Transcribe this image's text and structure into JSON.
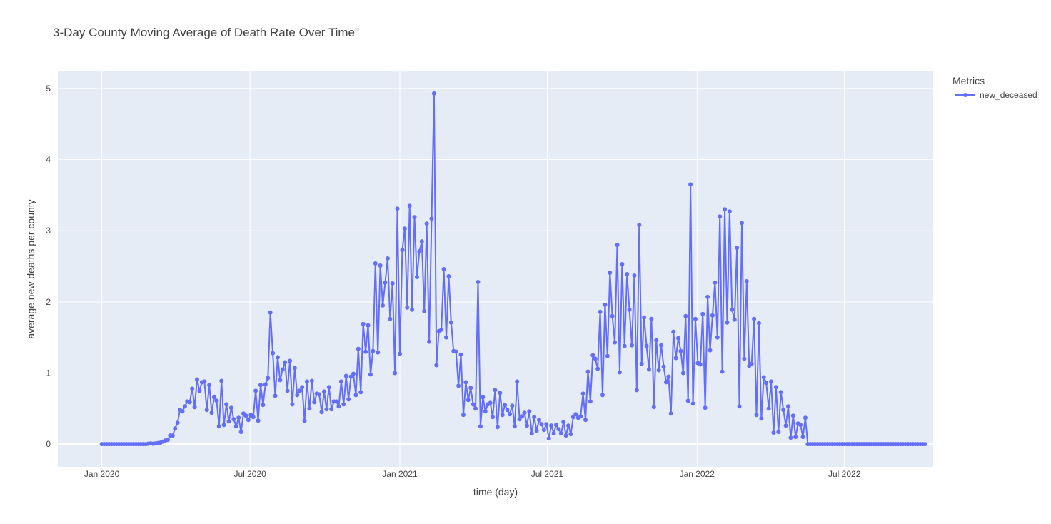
{
  "chart_data": {
    "type": "line",
    "title": "3-Day County Moving Average of Death Rate Over Time\"",
    "xlabel": "time (day)",
    "ylabel": "average new deaths per county",
    "x_ticks": [
      {
        "label": "Jan 2020",
        "date": "2020-01-01"
      },
      {
        "label": "Jul 2020",
        "date": "2020-07-01"
      },
      {
        "label": "Jan 2021",
        "date": "2021-01-01"
      },
      {
        "label": "Jul 2021",
        "date": "2021-07-01"
      },
      {
        "label": "Jan 2022",
        "date": "2022-01-01"
      },
      {
        "label": "Jul 2022",
        "date": "2022-07-01"
      }
    ],
    "y_ticks": [
      0,
      1,
      2,
      3,
      4,
      5
    ],
    "xlim": [
      "2019-11-08",
      "2022-10-18"
    ],
    "ylim": [
      -0.32,
      5.24
    ],
    "grid": true,
    "legend": {
      "title": "Metrics",
      "position": "right",
      "entries": [
        "new_deceased"
      ]
    },
    "series": [
      {
        "name": "new_deceased",
        "color": "#636efa",
        "start_date": "2020-01-01",
        "interval_days": 3,
        "values": [
          0,
          0,
          0,
          0,
          0,
          0,
          0,
          0,
          0,
          0,
          0,
          0,
          0,
          0,
          0,
          0,
          0,
          0,
          0,
          0.005,
          0.01,
          0.005,
          0.01,
          0.015,
          0.02,
          0.035,
          0.05,
          0.06,
          0.12,
          0.12,
          0.22,
          0.3,
          0.48,
          0.46,
          0.53,
          0.6,
          0.59,
          0.78,
          0.52,
          0.91,
          0.75,
          0.87,
          0.88,
          0.48,
          0.83,
          0.44,
          0.66,
          0.61,
          0.25,
          0.89,
          0.27,
          0.56,
          0.32,
          0.51,
          0.35,
          0.25,
          0.37,
          0.17,
          0.43,
          0.4,
          0.34,
          0.41,
          0.38,
          0.75,
          0.33,
          0.83,
          0.55,
          0.84,
          0.93,
          1.85,
          1.28,
          0.68,
          1.22,
          0.9,
          1.05,
          1.15,
          0.75,
          1.17,
          0.56,
          1.07,
          0.69,
          0.75,
          0.8,
          0.33,
          0.88,
          0.5,
          0.89,
          0.59,
          0.71,
          0.7,
          0.45,
          0.74,
          0.49,
          0.8,
          0.49,
          0.6,
          0.6,
          0.53,
          0.88,
          0.56,
          0.96,
          0.63,
          0.95,
          0.99,
          0.69,
          1.34,
          0.73,
          1.69,
          1.3,
          1.67,
          0.98,
          1.31,
          2.54,
          1.29,
          2.51,
          1.95,
          2.27,
          2.61,
          1.76,
          2.26,
          1.0,
          3.31,
          1.27,
          2.73,
          3.03,
          1.92,
          3.35,
          1.89,
          3.19,
          2.35,
          2.71,
          2.85,
          1.87,
          3.1,
          1.44,
          3.17,
          4.93,
          1.11,
          1.59,
          1.61,
          2.46,
          1.5,
          2.36,
          1.71,
          1.31,
          1.3,
          0.82,
          1.26,
          0.41,
          0.87,
          0.62,
          0.79,
          0.56,
          0.5,
          2.28,
          0.25,
          0.66,
          0.46,
          0.56,
          0.58,
          0.38,
          0.76,
          0.24,
          0.72,
          0.41,
          0.55,
          0.48,
          0.42,
          0.54,
          0.25,
          0.88,
          0.35,
          0.39,
          0.44,
          0.26,
          0.46,
          0.15,
          0.38,
          0.19,
          0.34,
          0.28,
          0.2,
          0.28,
          0.08,
          0.26,
          0.15,
          0.27,
          0.21,
          0.15,
          0.31,
          0.12,
          0.26,
          0.14,
          0.38,
          0.42,
          0.37,
          0.39,
          0.71,
          0.34,
          1.02,
          0.6,
          1.25,
          1.2,
          1.06,
          1.86,
          0.69,
          1.96,
          1.24,
          2.41,
          1.8,
          1.43,
          2.8,
          1.01,
          2.53,
          1.38,
          2.39,
          1.89,
          1.39,
          2.37,
          0.76,
          3.08,
          1.13,
          1.78,
          1.38,
          1.05,
          1.76,
          0.52,
          1.46,
          1.04,
          1.39,
          1.09,
          0.87,
          0.95,
          0.43,
          1.58,
          1.21,
          1.49,
          1.31,
          1.0,
          1.8,
          0.61,
          3.65,
          0.57,
          1.76,
          1.14,
          1.12,
          1.83,
          0.51,
          2.07,
          1.32,
          1.81,
          2.27,
          1.5,
          3.2,
          1.02,
          3.3,
          1.71,
          3.27,
          1.89,
          1.75,
          2.76,
          0.53,
          3.11,
          1.2,
          2.29,
          1.1,
          1.13,
          1.76,
          0.41,
          1.7,
          0.36,
          0.94,
          0.86,
          0.5,
          0.88,
          0.16,
          0.8,
          0.17,
          0.73,
          0.48,
          0.26,
          0.53,
          0.09,
          0.4,
          0.1,
          0.29,
          0.27,
          0.1,
          0.37,
          0,
          0,
          0,
          0,
          0,
          0,
          0,
          0,
          0,
          0,
          0,
          0,
          0,
          0,
          0,
          0,
          0,
          0,
          0,
          0,
          0,
          0,
          0,
          0,
          0,
          0,
          0,
          0,
          0,
          0,
          0,
          0,
          0,
          0,
          0,
          0,
          0,
          0,
          0,
          0,
          0,
          0,
          0,
          0,
          0,
          0,
          0,
          0,
          0
        ]
      }
    ]
  }
}
